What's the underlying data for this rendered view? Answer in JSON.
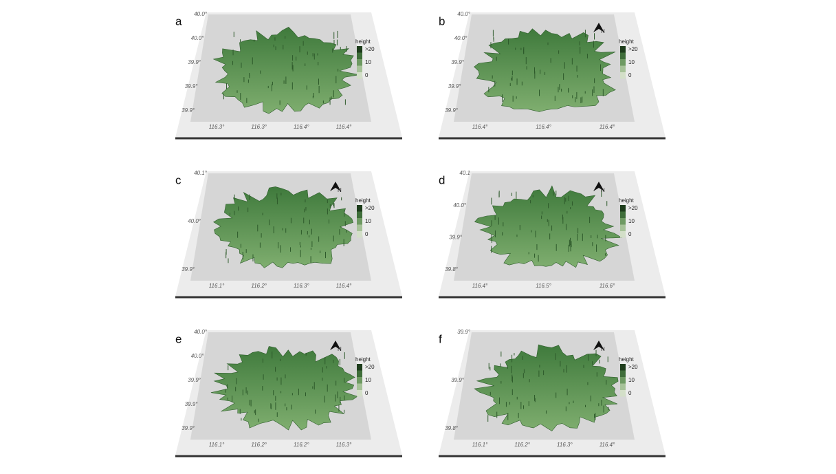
{
  "legend": {
    "title": "height",
    "labels": [
      ">20",
      "10",
      "0"
    ]
  },
  "north": "N",
  "panels": [
    {
      "letter": "a",
      "yticks": [
        "40.0°",
        "40.0°",
        "39.9°",
        "39.9°",
        "39.9°"
      ],
      "xticks": [
        "116.3°",
        "116.3°",
        "116.4°",
        "116.4°"
      ]
    },
    {
      "letter": "b",
      "yticks": [
        "40.0°",
        "40.0°",
        "39.9°",
        "39.9°",
        "39.9°"
      ],
      "xticks": [
        "116.4°",
        "116.4°",
        "116.4°"
      ]
    },
    {
      "letter": "c",
      "yticks": [
        "40.1°",
        "40.0°",
        "39.9°"
      ],
      "xticks": [
        "116.1°",
        "116.2°",
        "116.3°",
        "116.4°"
      ]
    },
    {
      "letter": "d",
      "yticks": [
        "40.1",
        "40.0°",
        "39.9°",
        "39.8°"
      ],
      "xticks": [
        "116.4°",
        "116.5°",
        "116.6°"
      ]
    },
    {
      "letter": "e",
      "yticks": [
        "40.0°",
        "40.0°",
        "39.9°",
        "39.9°",
        "39.9°"
      ],
      "xticks": [
        "116.1°",
        "116.2°",
        "116.2°",
        "116.3°"
      ]
    },
    {
      "letter": "f",
      "yticks": [
        "39.9°",
        "39.9°",
        "39.8°"
      ],
      "xticks": [
        "116.1°",
        "116.2°",
        "116.3°",
        "116.4°"
      ]
    }
  ]
}
